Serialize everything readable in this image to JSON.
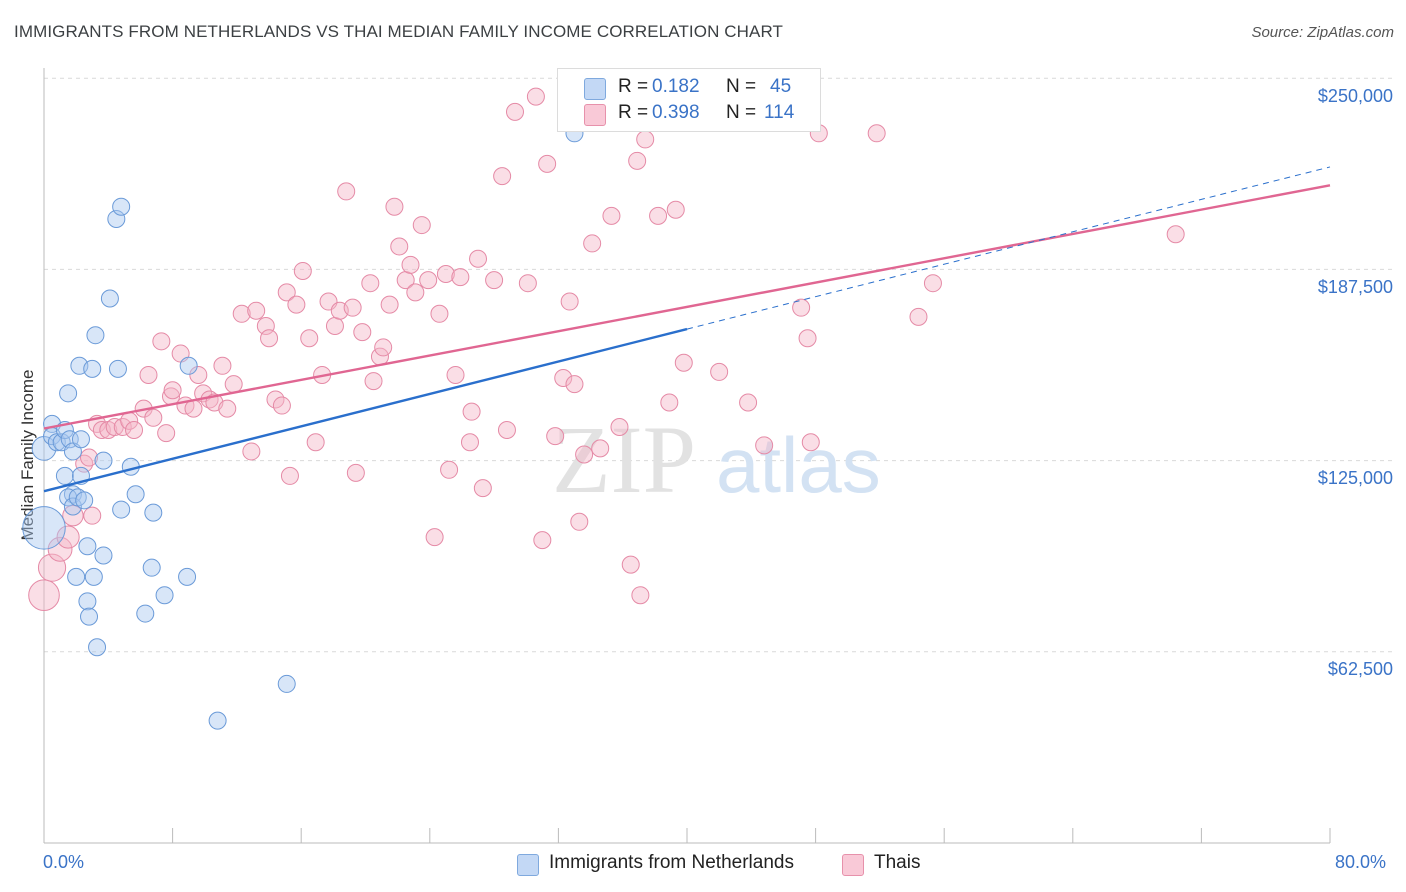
{
  "title": "IMMIGRANTS FROM NETHERLANDS VS THAI MEDIAN FAMILY INCOME CORRELATION CHART",
  "source": "Source: ZipAtlas.com",
  "watermark": {
    "zip": "ZIP",
    "atlas": "atlas"
  },
  "legend_top": {
    "rows": [
      {
        "r_label": "R =",
        "r_value": "0.182",
        "n_label": "N =",
        "n_value": "45"
      },
      {
        "r_label": "R =",
        "r_value": "0.398",
        "n_label": "N =",
        "n_value": "114"
      }
    ]
  },
  "legend_bottom": {
    "items": [
      {
        "label": "Immigrants from Netherlands"
      },
      {
        "label": "Thais"
      }
    ]
  },
  "colors": {
    "blue_fill": "#a9c8f0",
    "blue_stroke": "#6a9ad8",
    "blue_line": "#2a6fcc",
    "pink_fill": "#f5b5c8",
    "pink_stroke": "#e58aa6",
    "pink_line": "#e06692",
    "tick_text": "#3a73c7",
    "grid": "#d9d9d9"
  },
  "chart_data": {
    "type": "scatter",
    "title": "IMMIGRANTS FROM NETHERLANDS VS THAI MEDIAN FAMILY INCOME CORRELATION CHART",
    "xlabel": "",
    "ylabel": "Median Family Income",
    "xlim": [
      0,
      80
    ],
    "ylim": [
      0,
      262500
    ],
    "x_tick_labels": [
      "0.0%",
      "80.0%"
    ],
    "y_ticks": [
      62500,
      125000,
      187500,
      250000
    ],
    "y_tick_labels": [
      "$62,500",
      "$125,000",
      "$187,500",
      "$250,000"
    ],
    "grid": "horizontal dashed",
    "series": [
      {
        "name": "Immigrants from Netherlands",
        "color": "#a9c8f0",
        "r": 0.182,
        "n": 45,
        "trend": {
          "x": [
            0,
            40
          ],
          "y": [
            115000,
            168000
          ],
          "extended_to": [
            80,
            221000
          ]
        },
        "points": [
          [
            0,
            103000,
            2.5
          ],
          [
            0,
            129000,
            1.4
          ],
          [
            0.5,
            137000,
            1
          ],
          [
            0.5,
            133000,
            1
          ],
          [
            0.8,
            131000,
            1
          ],
          [
            1.1,
            131000,
            1
          ],
          [
            1.3,
            135000,
            1
          ],
          [
            1.3,
            120000,
            1
          ],
          [
            1.5,
            147000,
            1
          ],
          [
            1.6,
            132000,
            1
          ],
          [
            1.8,
            128000,
            1
          ],
          [
            1.8,
            114000,
            1
          ],
          [
            1.5,
            113000,
            1
          ],
          [
            1.8,
            110000,
            1
          ],
          [
            2.0,
            87000,
            1
          ],
          [
            2.1,
            113000,
            1
          ],
          [
            2.2,
            156000,
            1
          ],
          [
            2.3,
            120000,
            1
          ],
          [
            2.3,
            132000,
            1
          ],
          [
            2.5,
            112000,
            1
          ],
          [
            2.7,
            79000,
            1
          ],
          [
            2.7,
            97000,
            1
          ],
          [
            2.8,
            74000,
            1
          ],
          [
            3.0,
            155000,
            1
          ],
          [
            3.1,
            87000,
            1
          ],
          [
            3.2,
            166000,
            1
          ],
          [
            3.3,
            64000,
            1
          ],
          [
            3.7,
            125000,
            1
          ],
          [
            3.7,
            94000,
            1
          ],
          [
            4.1,
            178000,
            1
          ],
          [
            4.5,
            204000,
            1
          ],
          [
            4.6,
            155000,
            1
          ],
          [
            4.8,
            208000,
            1
          ],
          [
            4.8,
            109000,
            1
          ],
          [
            5.4,
            123000,
            1
          ],
          [
            5.7,
            114000,
            1
          ],
          [
            6.3,
            75000,
            1
          ],
          [
            6.7,
            90000,
            1
          ],
          [
            6.8,
            108000,
            1
          ],
          [
            7.5,
            81000,
            1
          ],
          [
            8.9,
            87000,
            1
          ],
          [
            9.0,
            156000,
            1
          ],
          [
            10.8,
            40000,
            1
          ],
          [
            15.1,
            52000,
            1
          ],
          [
            33.0,
            232000,
            1
          ]
        ]
      },
      {
        "name": "Thais",
        "color": "#f5b5c8",
        "r": 0.398,
        "n": 114,
        "trend": {
          "x": [
            0,
            80
          ],
          "y": [
            135500,
            215000
          ]
        },
        "points": [
          [
            0,
            81000,
            1.8
          ],
          [
            0.5,
            90000,
            1.6
          ],
          [
            1.0,
            96000,
            1.4
          ],
          [
            1.5,
            100000,
            1.3
          ],
          [
            1.8,
            107000,
            1.2
          ],
          [
            2.5,
            124000,
            1
          ],
          [
            2.8,
            126000,
            1
          ],
          [
            3.0,
            107000,
            1
          ],
          [
            3.3,
            137000,
            1
          ],
          [
            3.6,
            135000,
            1
          ],
          [
            4.0,
            135000,
            1
          ],
          [
            4.4,
            136000,
            1
          ],
          [
            4.9,
            136000,
            1
          ],
          [
            5.3,
            138000,
            1
          ],
          [
            5.6,
            135000,
            1
          ],
          [
            6.2,
            142000,
            1
          ],
          [
            6.5,
            153000,
            1
          ],
          [
            6.8,
            139000,
            1
          ],
          [
            7.3,
            164000,
            1
          ],
          [
            7.6,
            134000,
            1
          ],
          [
            7.9,
            146000,
            1
          ],
          [
            8.0,
            148000,
            1
          ],
          [
            8.5,
            160000,
            1
          ],
          [
            8.8,
            143000,
            1
          ],
          [
            9.3,
            142000,
            1
          ],
          [
            9.6,
            153000,
            1
          ],
          [
            9.9,
            147000,
            1
          ],
          [
            10.3,
            145000,
            1
          ],
          [
            10.6,
            144000,
            1
          ],
          [
            11.1,
            156000,
            1
          ],
          [
            11.4,
            142000,
            1
          ],
          [
            11.8,
            150000,
            1
          ],
          [
            12.3,
            173000,
            1
          ],
          [
            12.9,
            128000,
            1
          ],
          [
            13.2,
            174000,
            1
          ],
          [
            13.8,
            169000,
            1
          ],
          [
            14.0,
            165000,
            1
          ],
          [
            14.4,
            145000,
            1
          ],
          [
            14.8,
            143000,
            1
          ],
          [
            15.1,
            180000,
            1
          ],
          [
            15.3,
            120000,
            1
          ],
          [
            15.7,
            176000,
            1
          ],
          [
            16.1,
            187000,
            1
          ],
          [
            16.5,
            165000,
            1
          ],
          [
            16.9,
            131000,
            1
          ],
          [
            17.3,
            153000,
            1
          ],
          [
            17.7,
            177000,
            1
          ],
          [
            18.1,
            169000,
            1
          ],
          [
            18.4,
            174000,
            1
          ],
          [
            18.8,
            213000,
            1
          ],
          [
            19.2,
            175000,
            1
          ],
          [
            19.4,
            121000,
            1
          ],
          [
            19.8,
            167000,
            1
          ],
          [
            20.3,
            183000,
            1
          ],
          [
            20.5,
            151000,
            1
          ],
          [
            20.9,
            159000,
            1
          ],
          [
            21.1,
            162000,
            1
          ],
          [
            21.5,
            176000,
            1
          ],
          [
            21.8,
            208000,
            1
          ],
          [
            22.1,
            195000,
            1
          ],
          [
            22.5,
            184000,
            1
          ],
          [
            22.8,
            189000,
            1
          ],
          [
            23.1,
            180000,
            1
          ],
          [
            23.5,
            202000,
            1
          ],
          [
            23.9,
            184000,
            1
          ],
          [
            24.3,
            100000,
            1
          ],
          [
            24.6,
            173000,
            1
          ],
          [
            25.0,
            186000,
            1
          ],
          [
            25.2,
            122000,
            1
          ],
          [
            25.6,
            153000,
            1
          ],
          [
            25.9,
            185000,
            1
          ],
          [
            26.5,
            131000,
            1
          ],
          [
            26.6,
            141000,
            1
          ],
          [
            27.0,
            191000,
            1
          ],
          [
            27.3,
            116000,
            1
          ],
          [
            28.0,
            184000,
            1
          ],
          [
            28.5,
            218000,
            1
          ],
          [
            28.8,
            135000,
            1
          ],
          [
            29.3,
            239000,
            1
          ],
          [
            30.1,
            183000,
            1
          ],
          [
            30.6,
            244000,
            1
          ],
          [
            31.0,
            99000,
            1
          ],
          [
            31.3,
            222000,
            1
          ],
          [
            31.8,
            133000,
            1
          ],
          [
            32.3,
            152000,
            1
          ],
          [
            32.7,
            177000,
            1
          ],
          [
            33.0,
            150000,
            1
          ],
          [
            33.3,
            105000,
            1
          ],
          [
            33.6,
            127000,
            1
          ],
          [
            34.1,
            196000,
            1
          ],
          [
            34.6,
            129000,
            1
          ],
          [
            35.3,
            205000,
            1
          ],
          [
            35.8,
            136000,
            1
          ],
          [
            36.5,
            91000,
            1
          ],
          [
            36.9,
            223000,
            1
          ],
          [
            37.1,
            81000,
            1
          ],
          [
            37.4,
            230000,
            1
          ],
          [
            38.2,
            205000,
            1
          ],
          [
            38.9,
            144000,
            1
          ],
          [
            39.3,
            207000,
            1
          ],
          [
            39.8,
            157000,
            1
          ],
          [
            42.0,
            154000,
            1
          ],
          [
            43.8,
            144000,
            1
          ],
          [
            44.8,
            130000,
            1
          ],
          [
            47.1,
            175000,
            1
          ],
          [
            47.5,
            165000,
            1
          ],
          [
            47.7,
            131000,
            1
          ],
          [
            48.2,
            232000,
            1
          ],
          [
            51.8,
            232000,
            1
          ],
          [
            54.4,
            172000,
            1
          ],
          [
            55.3,
            183000,
            1
          ],
          [
            70.4,
            199000,
            1
          ]
        ]
      }
    ]
  }
}
